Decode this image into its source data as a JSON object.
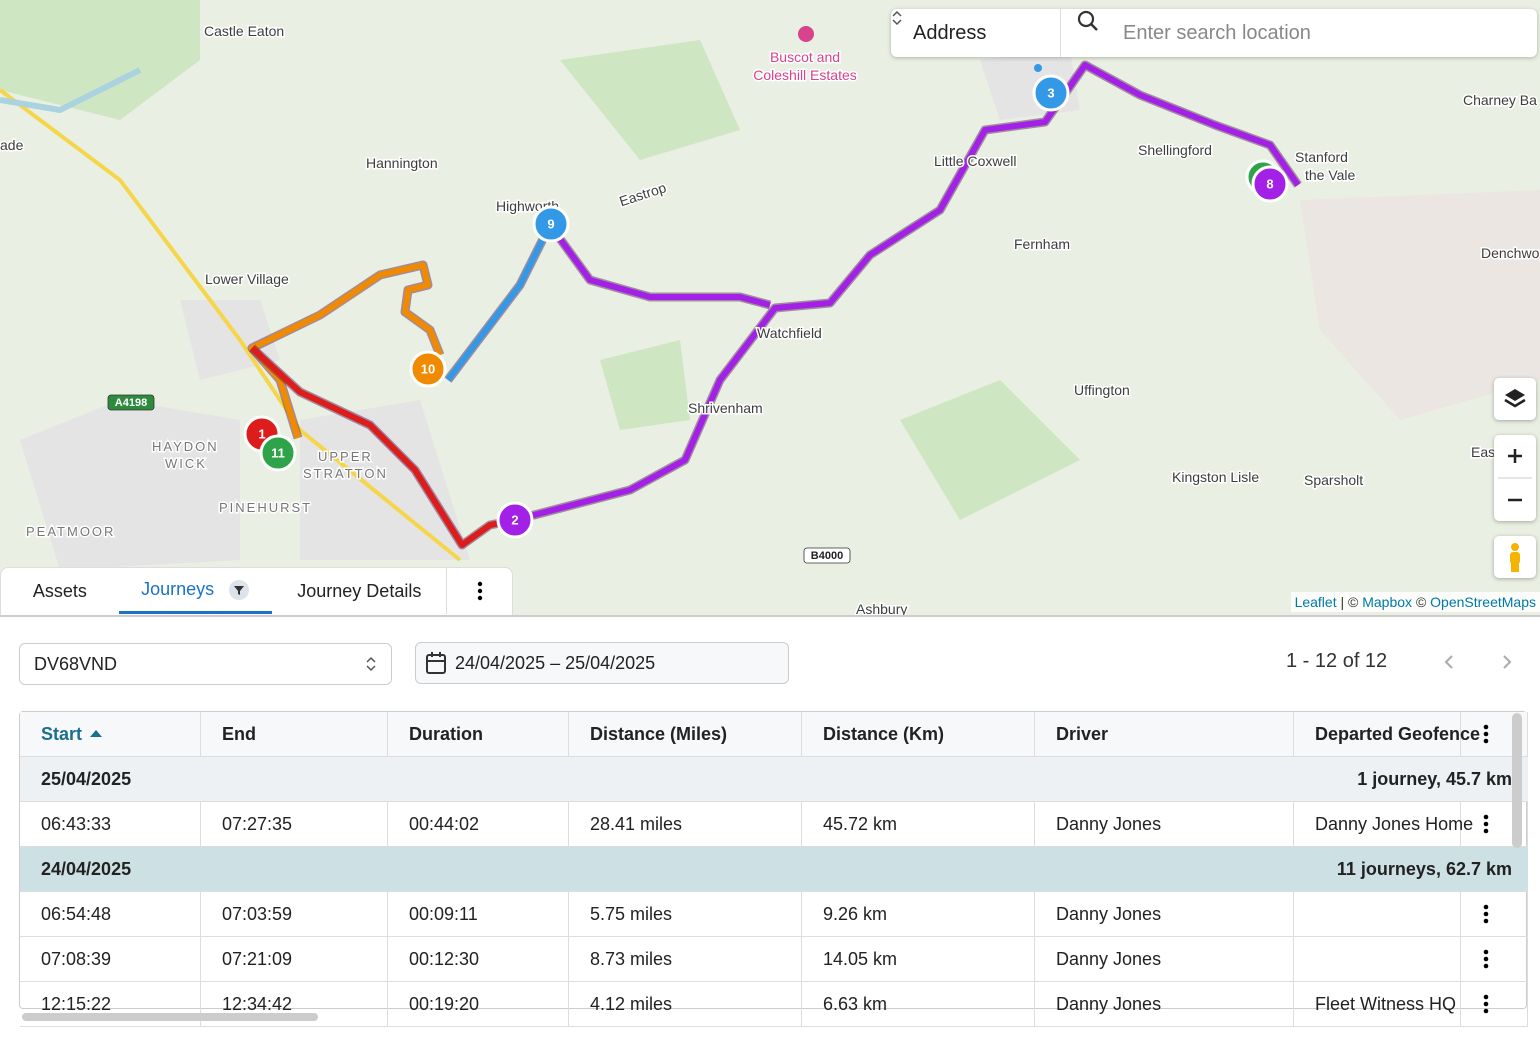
{
  "search": {
    "mode": "Address",
    "placeholder": "Enter search location"
  },
  "map": {
    "places": [
      "Castle Eaton",
      "ade",
      "Hannington",
      "Lower Village",
      "Highworth",
      "Eastrop",
      "Little Coxwell",
      "Shellingford",
      "Stanford",
      "the Vale",
      "Charney Ba",
      "Fernham",
      "Denchwo",
      "Watchfield",
      "Shrivenham",
      "Uffington",
      "Eas",
      "Kingston Lisle",
      "Sparsholt",
      "HAYDON",
      "WICK",
      "UPPER",
      "STRATTON",
      "PINEHURST",
      "PEATMOOR",
      "Ashbury"
    ],
    "poi": [
      "Buscot and",
      "Coleshill Estates"
    ],
    "roads": [
      "A4198",
      "B4000"
    ],
    "markers": [
      "1",
      "11",
      "10",
      "9",
      "2",
      "3",
      "8"
    ],
    "attribution": {
      "leaflet": "Leaflet",
      "sep1": "| ©",
      "mapbox": "Mapbox",
      "sep2": "©",
      "osm": "OpenStreetMaps"
    }
  },
  "tabs": [
    "Assets",
    "Journeys",
    "Journey Details"
  ],
  "filters": {
    "vehicle": "DV68VND",
    "date_range": "24/04/2025 – 25/04/2025"
  },
  "pagination": "1 - 12 of 12",
  "table": {
    "columns": [
      "Start",
      "End",
      "Duration",
      "Distance (Miles)",
      "Distance (Km)",
      "Driver",
      "Departed Geofence"
    ],
    "groups": [
      {
        "date": "25/04/2025",
        "summary": "1 journey, 45.7 km",
        "rows": [
          [
            "06:43:33",
            "07:27:35",
            "00:44:02",
            "28.41 miles",
            "45.72 km",
            "Danny Jones",
            "Danny Jones Home"
          ]
        ]
      },
      {
        "date": "24/04/2025",
        "summary": "11 journeys, 62.7 km",
        "rows": [
          [
            "06:54:48",
            "07:03:59",
            "00:09:11",
            "5.75 miles",
            "9.26 km",
            "Danny Jones",
            ""
          ],
          [
            "07:08:39",
            "07:21:09",
            "00:12:30",
            "8.73 miles",
            "14.05 km",
            "Danny Jones",
            ""
          ],
          [
            "12:15:22",
            "12:34:42",
            "00:19:20",
            "4.12 miles",
            "6.63 km",
            "Danny Jones",
            "Fleet Witness HQ"
          ]
        ]
      }
    ]
  }
}
